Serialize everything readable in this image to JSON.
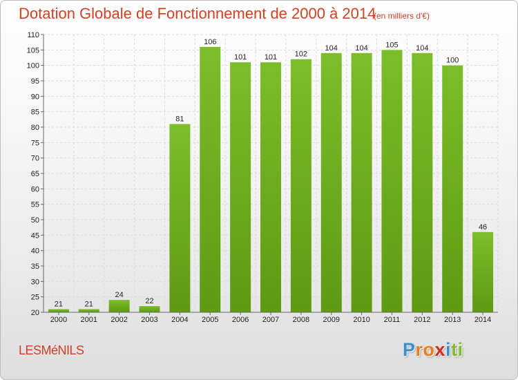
{
  "chart_data": {
    "type": "bar",
    "title": "Dotation Globale de Fonctionnement de 2000 à 2014",
    "unit_note": "(en milliers d'€)",
    "categories": [
      "2000",
      "2001",
      "2002",
      "2003",
      "2004",
      "2005",
      "2006",
      "2007",
      "2008",
      "2009",
      "2010",
      "2011",
      "2012",
      "2013",
      "2014"
    ],
    "values": [
      21,
      21,
      24,
      22,
      81,
      106,
      101,
      101,
      102,
      104,
      104,
      105,
      104,
      100,
      46
    ],
    "ylim": [
      20,
      110
    ],
    "yticks": [
      20,
      25,
      30,
      35,
      40,
      45,
      50,
      55,
      60,
      65,
      70,
      75,
      80,
      85,
      90,
      95,
      100,
      105,
      110
    ],
    "grid": true,
    "bar_color": "#7cbd2a",
    "bar_color_dark": "#5e9a12"
  },
  "footer": {
    "commune": "LESMéNILS",
    "logo_letters": [
      "P",
      "r",
      "o",
      "x",
      "i",
      "t",
      "i"
    ],
    "logo_colors": [
      "#3a8fd0",
      "#e87f1a",
      "#e87f1a",
      "#d7281c",
      "#3a8fd0",
      "#84bb2a",
      "#84bb2a"
    ]
  }
}
